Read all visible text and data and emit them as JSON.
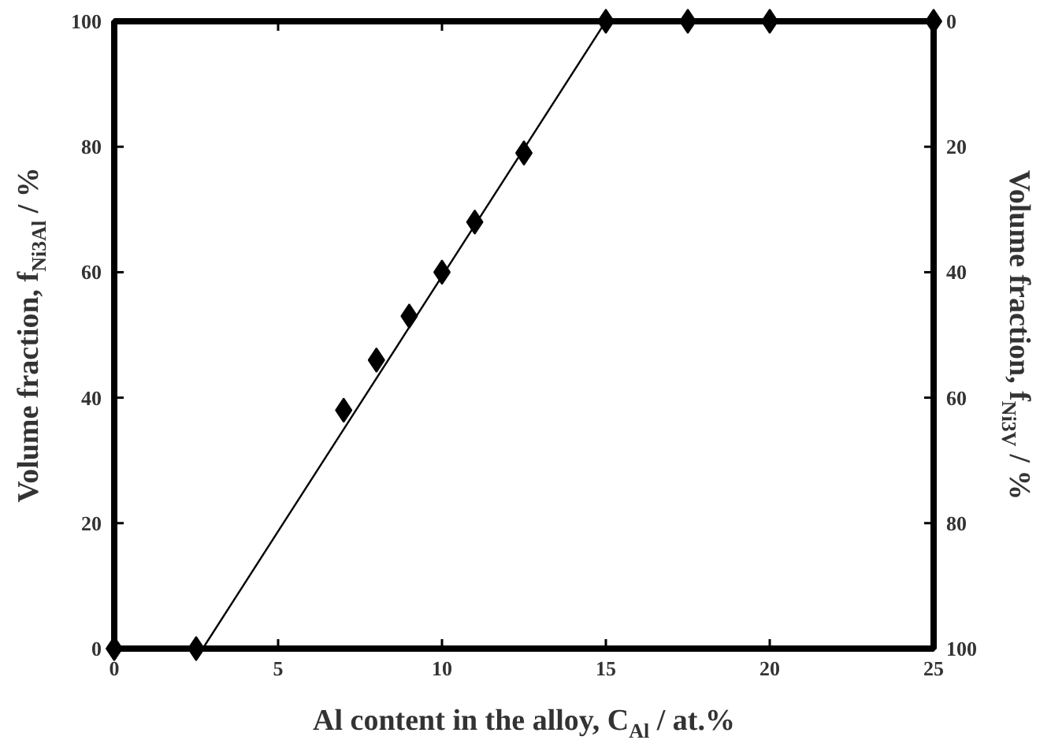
{
  "chart_data": {
    "type": "scatter",
    "xlabel": "Al content in the alloy, C$_{Al}$ / at.%",
    "ylabel": "Volume fraction, f$_{Ni3Al}$ / %",
    "y2label": "Volume fraction, f$_{Ni3V}$ / %",
    "xlim": [
      0,
      25
    ],
    "xticks": [
      0,
      5,
      10,
      15,
      20,
      25
    ],
    "ylim": [
      0,
      100
    ],
    "yticks": [
      0,
      20,
      40,
      60,
      80,
      100
    ],
    "y2lim": [
      100,
      0
    ],
    "y2ticks": [
      0,
      20,
      40,
      60,
      80,
      100
    ],
    "grid": false,
    "series": [
      {
        "color": "#000000",
        "marker": "diamond",
        "x": [
          0,
          2.5,
          7,
          8,
          9,
          10,
          11,
          12.5,
          15,
          17.5,
          20,
          25
        ],
        "values": [
          0,
          0,
          38,
          46,
          53,
          60,
          68,
          79,
          100,
          100,
          100,
          100
        ]
      },
      {
        "type": "line",
        "color": "#000000",
        "x": [
          2.7,
          15
        ],
        "values": [
          0,
          100
        ]
      }
    ]
  }
}
